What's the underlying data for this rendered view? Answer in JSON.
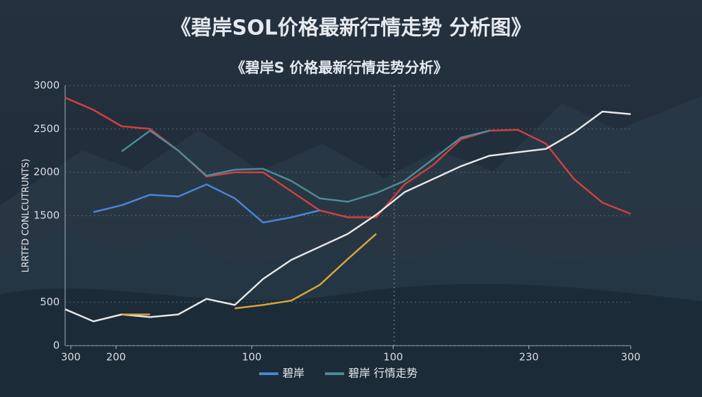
{
  "chart_data": {
    "type": "line",
    "title": "《碧岸SOL价格最新行情走势 分析图》",
    "subtitle": "《碧岸S 价格最新行情走势分析》",
    "y_label": "LRRTFD CONLCUTRUNTS)",
    "x": [
      0,
      5,
      10,
      15,
      20,
      25,
      30,
      35,
      40,
      45,
      50,
      55,
      60,
      65,
      70,
      75,
      80,
      85,
      90,
      95,
      100
    ],
    "xlim": [
      0,
      100
    ],
    "xticks": [
      {
        "value": 1,
        "label": "300"
      },
      {
        "value": 9,
        "label": "200"
      },
      {
        "value": 33,
        "label": "100"
      },
      {
        "value": 58,
        "label": "100"
      },
      {
        "value": 82,
        "label": "230"
      },
      {
        "value": 100,
        "label": "300"
      }
    ],
    "ylim": [
      0,
      3000
    ],
    "yticks": [
      0,
      500,
      1500,
      2000,
      2500,
      3000
    ],
    "grid": true,
    "legend": "bottom",
    "series": [
      {
        "color": "#d2403f",
        "values": [
          2860,
          2720,
          2530,
          2500,
          2250,
          1950,
          2000,
          2000,
          1780,
          1560,
          1480,
          1480,
          1860,
          2080,
          2380,
          2480,
          2490,
          2330,
          1920,
          1650,
          1520
        ]
      },
      {
        "name": "碧岸",
        "color": "#4a86d8",
        "values": [
          null,
          1540,
          1620,
          1740,
          1720,
          1860,
          1700,
          1420,
          1480,
          1560,
          null,
          null,
          null,
          null,
          null,
          null,
          null,
          null,
          null,
          null,
          null
        ]
      },
      {
        "name": "碧岸 行情走势",
        "color": "#4f8a9a",
        "values": [
          null,
          null,
          2240,
          2480,
          2250,
          1960,
          2030,
          2040,
          1900,
          1700,
          1660,
          1760,
          1900,
          2150,
          2400,
          2480,
          null,
          null,
          null,
          null,
          null
        ]
      },
      {
        "color": "#e8e8e8",
        "values": [
          420,
          280,
          360,
          330,
          360,
          540,
          470,
          770,
          990,
          1140,
          1290,
          1510,
          1770,
          1920,
          2070,
          2190,
          2230,
          2270,
          2460,
          2700,
          2670
        ]
      },
      {
        "color": "#d9a63a",
        "values": [
          null,
          null,
          360,
          360,
          null,
          null,
          430,
          470,
          520,
          700,
          1000,
          1290,
          null,
          null,
          null,
          null,
          null,
          null,
          null,
          null,
          null
        ]
      }
    ]
  }
}
